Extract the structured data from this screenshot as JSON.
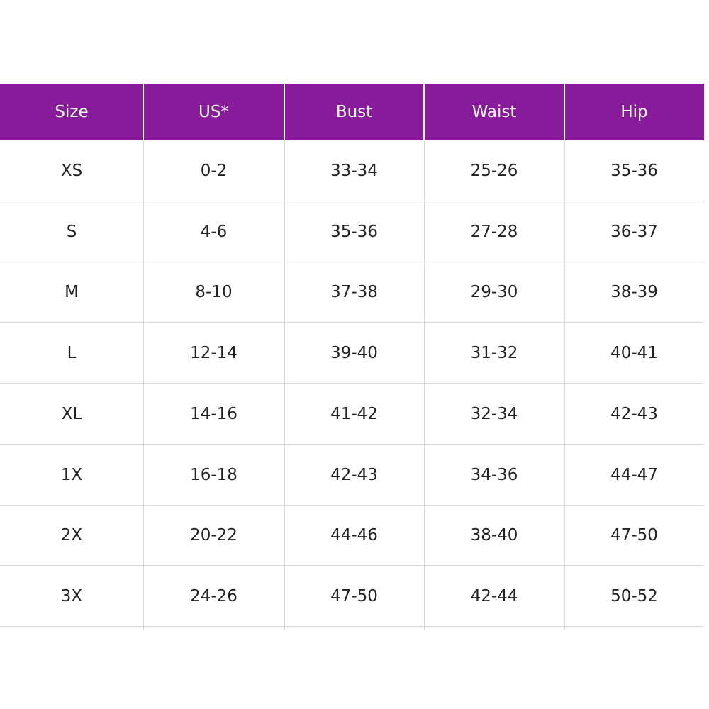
{
  "table": {
    "header": [
      "Size",
      "US*",
      "Bust",
      "Waist",
      "Hip"
    ],
    "rows": [
      [
        "XS",
        "0-2",
        "33-34",
        "25-26",
        "35-36"
      ],
      [
        "S",
        "4-6",
        "35-36",
        "27-28",
        "36-37"
      ],
      [
        "M",
        "8-10",
        "37-38",
        "29-30",
        "38-39"
      ],
      [
        "L",
        "12-14",
        "39-40",
        "31-32",
        "40-41"
      ],
      [
        "XL",
        "14-16",
        "41-42",
        "32-34",
        "42-43"
      ],
      [
        "1X",
        "16-18",
        "42-43",
        "34-36",
        "44-47"
      ],
      [
        "2X",
        "20-22",
        "44-46",
        "38-40",
        "47-50"
      ],
      [
        "3X",
        "24-26",
        "47-50",
        "42-44",
        "50-52"
      ]
    ]
  }
}
